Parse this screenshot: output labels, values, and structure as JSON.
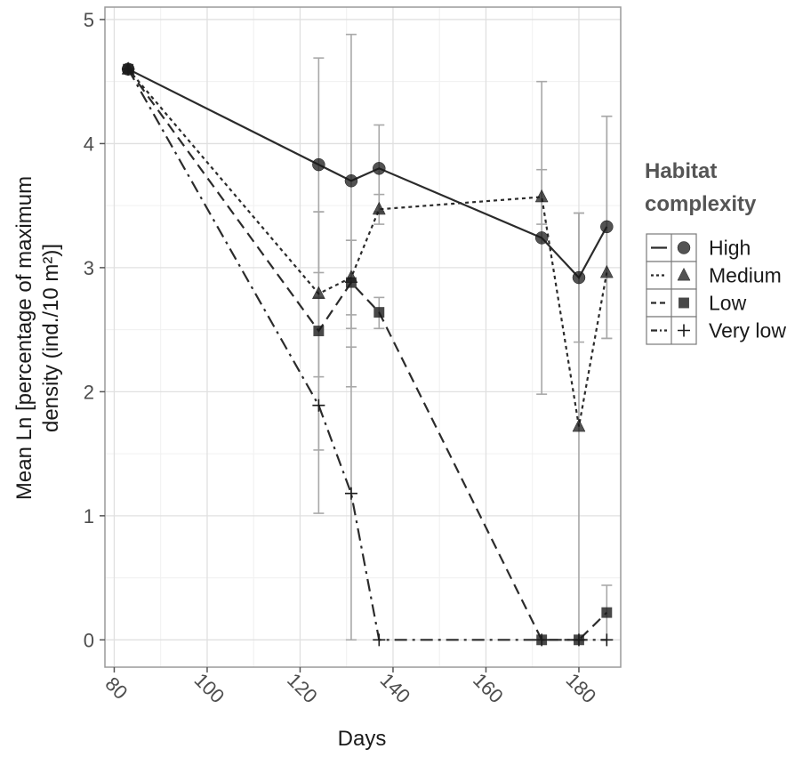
{
  "chart_data": {
    "type": "line",
    "xlabel": "Days",
    "ylabel": "Mean Ln [percentage of maximum density (ind./10 m²)]",
    "ylabel_lines": [
      "Mean Ln [percentage of maximum",
      "density (ind./10 m²)]"
    ],
    "xlim": [
      78,
      189
    ],
    "ylim": [
      -0.22,
      5.1
    ],
    "x_ticks": [
      80,
      100,
      120,
      140,
      160,
      180
    ],
    "x_tick_labels": [
      "80",
      "100",
      "120",
      "140",
      "160",
      "180"
    ],
    "y_ticks": [
      0,
      1,
      2,
      3,
      4,
      5
    ],
    "y_tick_labels": [
      "0",
      "1",
      "2",
      "3",
      "4",
      "5"
    ],
    "grid": true,
    "legend": {
      "title_lines": [
        "Habitat",
        "complexity"
      ],
      "placement": "right"
    },
    "series": [
      {
        "name": "High",
        "line_style": "solid",
        "marker": "circle",
        "points": [
          {
            "x": 83,
            "y": 4.6
          },
          {
            "x": 124,
            "y": 3.83,
            "err_low": 2.96,
            "err_high": 4.69
          },
          {
            "x": 131,
            "y": 3.7,
            "err_low": 2.51,
            "err_high": 4.88
          },
          {
            "x": 137,
            "y": 3.8,
            "err_low": 3.45,
            "err_high": 4.15
          },
          {
            "x": 172,
            "y": 3.24,
            "err_low": 1.98,
            "err_high": 4.5
          },
          {
            "x": 180,
            "y": 2.92,
            "err_low": 2.4,
            "err_high": 3.44
          },
          {
            "x": 186,
            "y": 3.33,
            "err_low": 2.43,
            "err_high": 4.22
          }
        ]
      },
      {
        "name": "Medium",
        "line_style": "dotted",
        "marker": "triangle",
        "points": [
          {
            "x": 83,
            "y": 4.6
          },
          {
            "x": 124,
            "y": 2.79,
            "err_low": 2.12,
            "err_high": 3.45
          },
          {
            "x": 131,
            "y": 2.92,
            "err_low": 2.62,
            "err_high": 3.22
          },
          {
            "x": 137,
            "y": 3.47,
            "err_low": 3.35,
            "err_high": 3.59
          },
          {
            "x": 172,
            "y": 3.57,
            "err_low": 3.35,
            "err_high": 3.79
          },
          {
            "x": 180,
            "y": 1.72,
            "err_low": 0,
            "err_high": 3.44
          },
          {
            "x": 186,
            "y": 2.96,
            "err_low": 2.43,
            "err_high": 4.22
          }
        ]
      },
      {
        "name": "Low",
        "line_style": "dashed",
        "marker": "square",
        "points": [
          {
            "x": 83,
            "y": 4.6
          },
          {
            "x": 124,
            "y": 2.49,
            "err_low": 1.53,
            "err_high": 3.45
          },
          {
            "x": 131,
            "y": 2.88,
            "err_low": 2.04,
            "err_high": 3.22
          },
          {
            "x": 137,
            "y": 2.64,
            "err_low": 2.51,
            "err_high": 2.76
          },
          {
            "x": 172,
            "y": 0
          },
          {
            "x": 180,
            "y": 0
          },
          {
            "x": 186,
            "y": 0.22,
            "err_low": 0,
            "err_high": 0.44
          }
        ]
      },
      {
        "name": "Very low",
        "line_style": "dashdot",
        "marker": "plus",
        "points": [
          {
            "x": 83,
            "y": 4.6
          },
          {
            "x": 124,
            "y": 1.89,
            "err_low": 1.02,
            "err_high": 2.76
          },
          {
            "x": 131,
            "y": 1.18,
            "err_low": 0,
            "err_high": 2.36
          },
          {
            "x": 137,
            "y": 0
          },
          {
            "x": 172,
            "y": 0
          },
          {
            "x": 180,
            "y": 0
          },
          {
            "x": 186,
            "y": 0
          }
        ]
      }
    ]
  }
}
